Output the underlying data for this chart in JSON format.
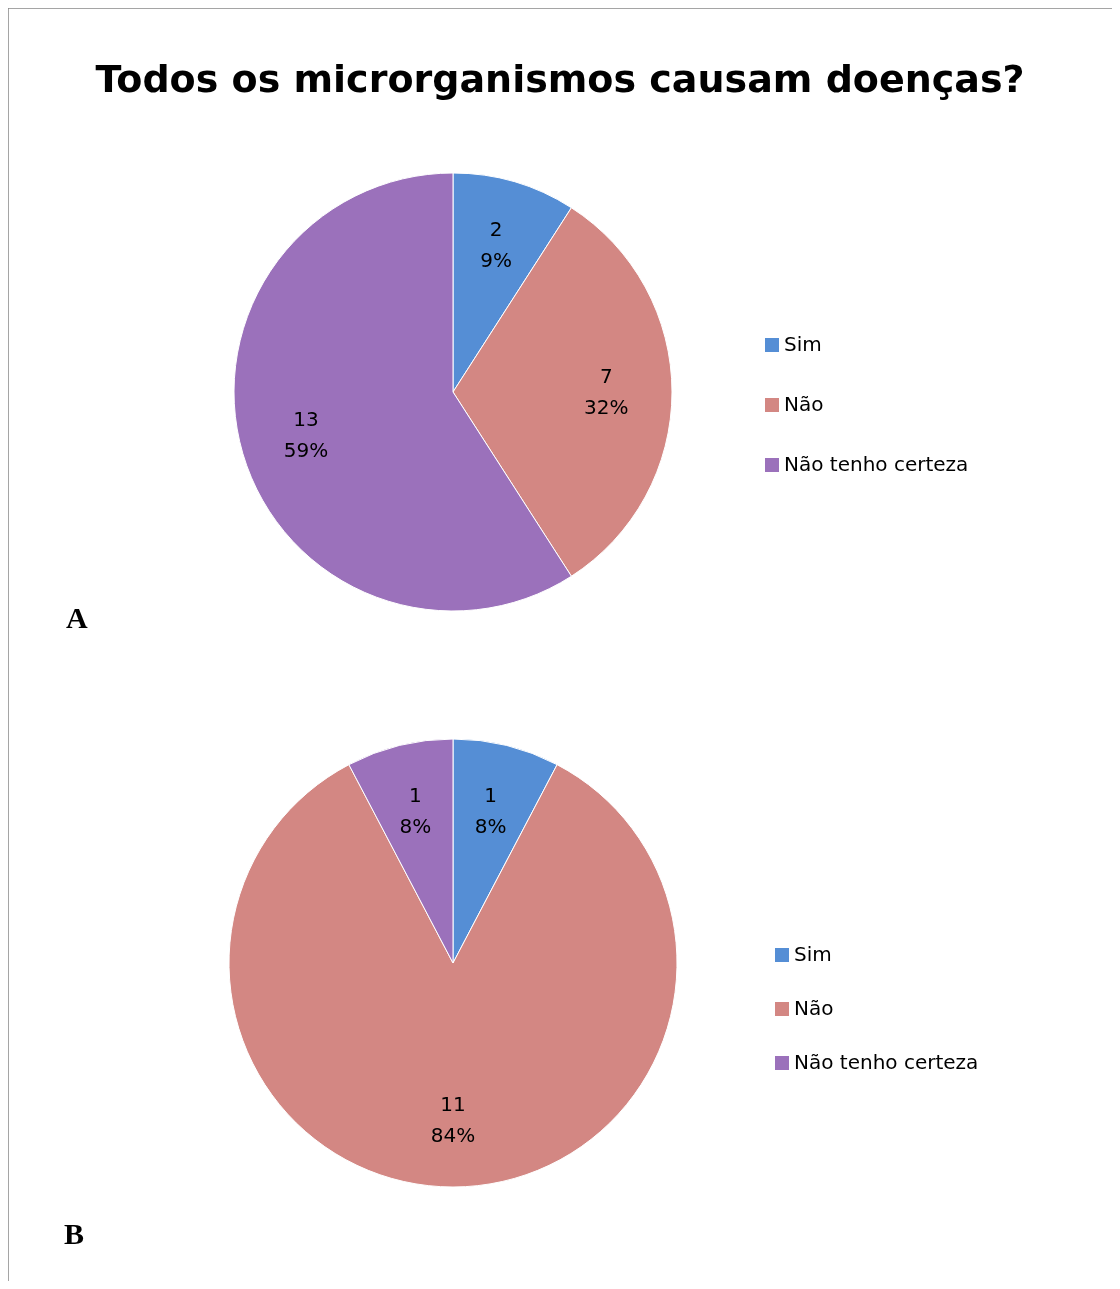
{
  "chart_data": [
    {
      "type": "pie",
      "title": "Todos os microrganismos causam doenças?",
      "categories": [
        "Sim",
        "Não",
        "Não tenho certeza"
      ],
      "values": [
        2,
        7,
        13
      ],
      "value_labels": [
        "2\n9%",
        "7\n32%",
        "13\n59%"
      ],
      "colors": [
        "#558ed5",
        "#d38783",
        "#9b71bb"
      ],
      "legend": "right",
      "annotations": [
        "A"
      ]
    },
    {
      "type": "pie",
      "categories": [
        "Sim",
        "Não",
        "Não tenho certeza"
      ],
      "values": [
        1,
        11,
        1
      ],
      "value_labels": [
        "1\n8%",
        "11\n84%",
        "1\n8%"
      ],
      "colors": [
        "#558ed5",
        "#d38783",
        "#9b71bb"
      ],
      "legend": "right",
      "annotations": [
        "B"
      ]
    }
  ]
}
